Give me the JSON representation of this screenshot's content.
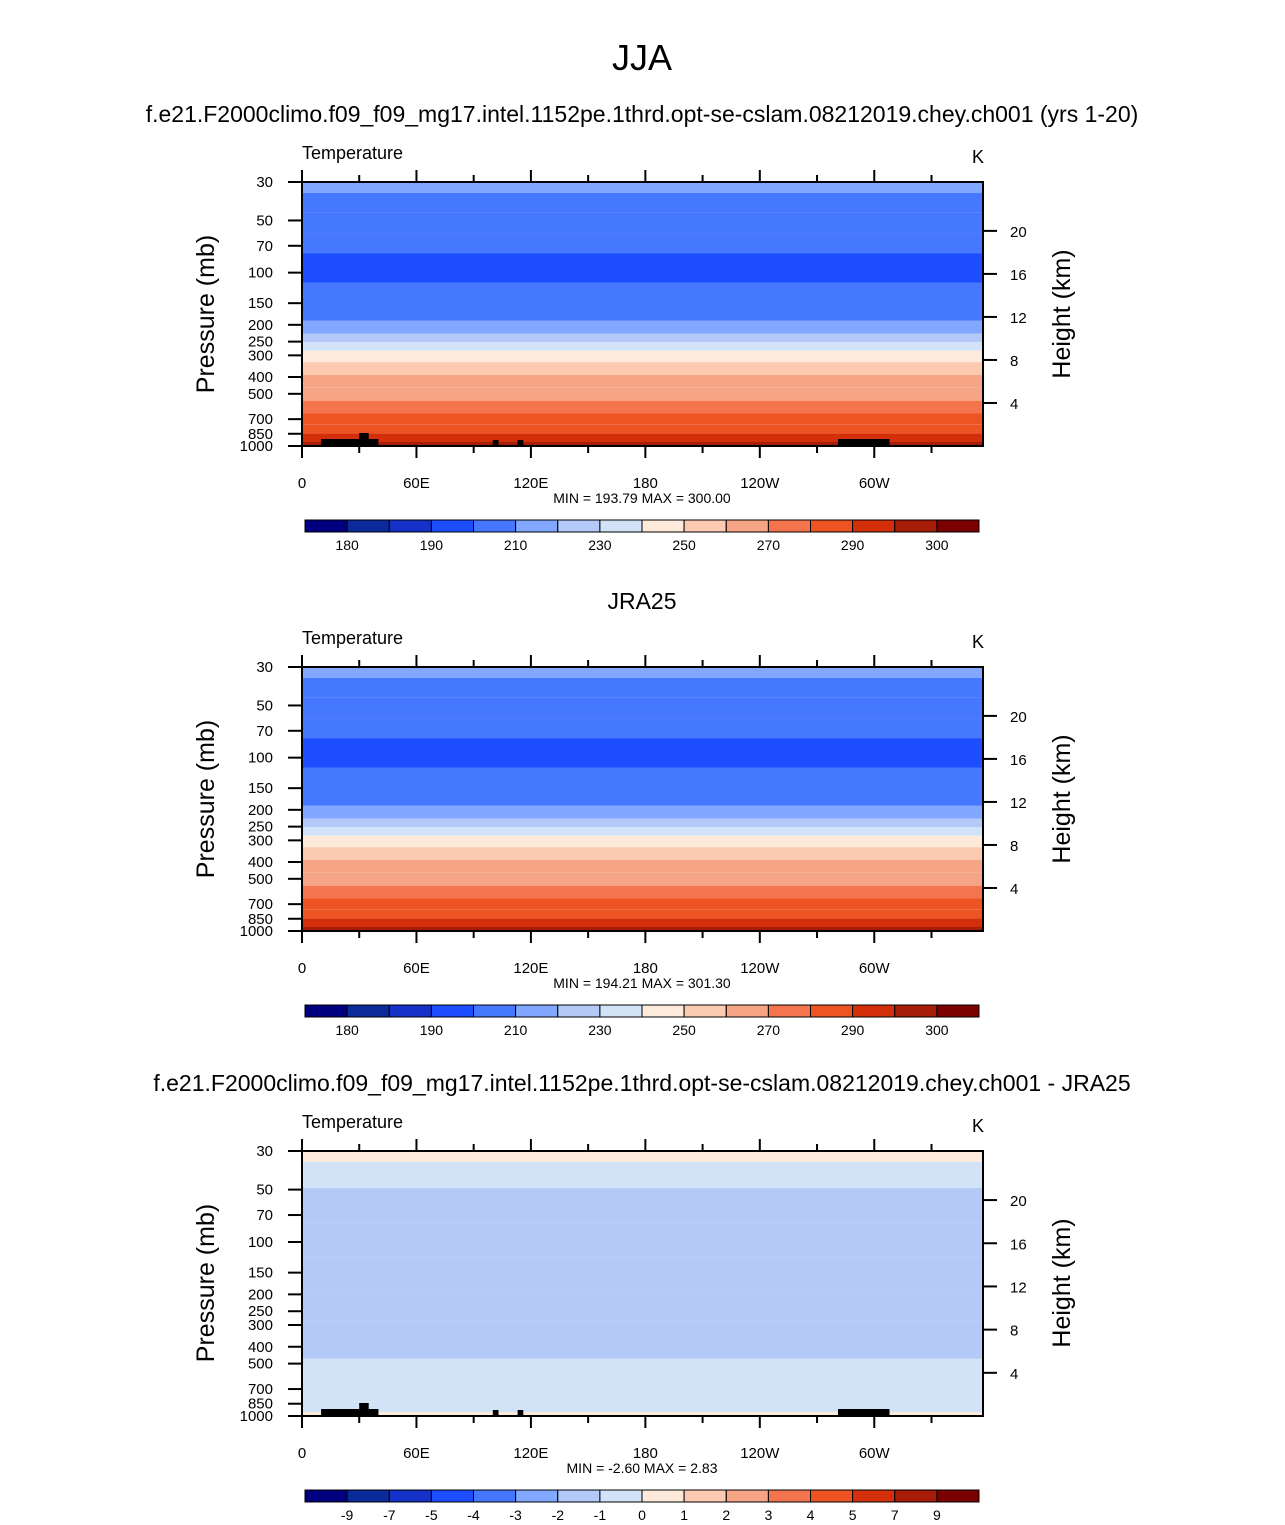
{
  "figure": {
    "main_title": "JJA"
  },
  "colors": {
    "abs_palette": [
      "#00007f",
      "#0b2a9c",
      "#1431c8",
      "#1c4eff",
      "#4677ff",
      "#81a7ff",
      "#b4c9f7",
      "#d2e3f8",
      "#fdeadb",
      "#fbcab1",
      "#f5a585",
      "#f4754d",
      "#ee5423",
      "#d42f0b",
      "#a61e08",
      "#7b0000"
    ],
    "diff_palette": [
      "#00007f",
      "#0b2a9c",
      "#1431c8",
      "#1c4eff",
      "#4677ff",
      "#81a7ff",
      "#b4c9f7",
      "#d2e3f8",
      "#fdeadb",
      "#fbcab1",
      "#f5a585",
      "#f4754d",
      "#ee5423",
      "#d42f0b",
      "#a61e08",
      "#7b0000"
    ],
    "topography": "#000000"
  },
  "chart_data": [
    {
      "type": "heatmap",
      "panel_title": "f.e21.F2000climo.f09_f09_mg17.intel.1152pe.1thrd.opt-se-cslam.08212019.chey.ch001 (yrs 1-20)",
      "left_label": "Temperature",
      "right_label": "K",
      "ylabel": "Pressure (mb)",
      "y2label": "Height (km)",
      "x_ticks": [
        "0",
        "60E",
        "120E",
        "180",
        "120W",
        "60W"
      ],
      "x_tick_values": [
        0,
        60,
        120,
        180,
        240,
        300
      ],
      "xlim": [
        0,
        357
      ],
      "ylim_mb": [
        1000,
        30
      ],
      "y_ticks": [
        "30",
        "50",
        "70",
        "100",
        "150",
        "200",
        "250",
        "300",
        "400",
        "500",
        "700",
        "850",
        "1000"
      ],
      "y_tick_values": [
        30,
        50,
        70,
        100,
        150,
        200,
        250,
        300,
        400,
        500,
        700,
        850,
        1000
      ],
      "y2_ticks": [
        "20",
        "16",
        "12",
        "8",
        "4"
      ],
      "y2_tick_values": [
        20,
        16,
        12,
        8,
        4
      ],
      "stats": "MIN = 193.79  MAX = 300.00",
      "min": 193.79,
      "max": 300.0,
      "palette": "abs",
      "colorbar_labels": [
        "180",
        "190",
        "210",
        "230",
        "250",
        "270",
        "290",
        "300"
      ],
      "colorbar_levels": [
        180,
        185,
        190,
        200,
        210,
        220,
        230,
        240,
        250,
        260,
        270,
        280,
        290,
        295,
        300
      ],
      "bands": [
        {
          "level": 30,
          "value": 214
        },
        {
          "level": 40,
          "value": 208
        },
        {
          "level": 50,
          "value": 205
        },
        {
          "level": 70,
          "value": 201
        },
        {
          "level": 85,
          "value": 195
        },
        {
          "level": 100,
          "value": 194
        },
        {
          "level": 130,
          "value": 200
        },
        {
          "level": 170,
          "value": 205
        },
        {
          "level": 210,
          "value": 215
        },
        {
          "level": 240,
          "value": 225
        },
        {
          "level": 265,
          "value": 235
        },
        {
          "level": 300,
          "value": 245
        },
        {
          "level": 360,
          "value": 252
        },
        {
          "level": 420,
          "value": 262
        },
        {
          "level": 500,
          "value": 267
        },
        {
          "level": 600,
          "value": 275
        },
        {
          "level": 700,
          "value": 281
        },
        {
          "level": 800,
          "value": 287
        },
        {
          "level": 900,
          "value": 292
        },
        {
          "level": 1000,
          "value": 296
        }
      ],
      "topography": true
    },
    {
      "type": "heatmap",
      "panel_title": "JRA25",
      "left_label": "Temperature",
      "right_label": "K",
      "ylabel": "Pressure (mb)",
      "y2label": "Height (km)",
      "x_ticks": [
        "0",
        "60E",
        "120E",
        "180",
        "120W",
        "60W"
      ],
      "x_tick_values": [
        0,
        60,
        120,
        180,
        240,
        300
      ],
      "xlim": [
        0,
        357
      ],
      "ylim_mb": [
        1000,
        30
      ],
      "y_ticks": [
        "30",
        "50",
        "70",
        "100",
        "150",
        "200",
        "250",
        "300",
        "400",
        "500",
        "700",
        "850",
        "1000"
      ],
      "y_tick_values": [
        30,
        50,
        70,
        100,
        150,
        200,
        250,
        300,
        400,
        500,
        700,
        850,
        1000
      ],
      "y2_ticks": [
        "20",
        "16",
        "12",
        "8",
        "4"
      ],
      "y2_tick_values": [
        20,
        16,
        12,
        8,
        4
      ],
      "stats": "MIN = 194.21  MAX = 301.30",
      "min": 194.21,
      "max": 301.3,
      "palette": "abs",
      "colorbar_labels": [
        "180",
        "190",
        "210",
        "230",
        "250",
        "270",
        "290",
        "300"
      ],
      "colorbar_levels": [
        180,
        185,
        190,
        200,
        210,
        220,
        230,
        240,
        250,
        260,
        270,
        280,
        290,
        295,
        300
      ],
      "bands": [
        {
          "level": 30,
          "value": 214
        },
        {
          "level": 40,
          "value": 208
        },
        {
          "level": 50,
          "value": 205
        },
        {
          "level": 70,
          "value": 201
        },
        {
          "level": 85,
          "value": 195
        },
        {
          "level": 100,
          "value": 194
        },
        {
          "level": 130,
          "value": 200
        },
        {
          "level": 170,
          "value": 205
        },
        {
          "level": 210,
          "value": 215
        },
        {
          "level": 240,
          "value": 225
        },
        {
          "level": 265,
          "value": 235
        },
        {
          "level": 300,
          "value": 245
        },
        {
          "level": 360,
          "value": 252
        },
        {
          "level": 420,
          "value": 262
        },
        {
          "level": 500,
          "value": 267
        },
        {
          "level": 600,
          "value": 275
        },
        {
          "level": 700,
          "value": 281
        },
        {
          "level": 800,
          "value": 287
        },
        {
          "level": 900,
          "value": 293
        },
        {
          "level": 1000,
          "value": 298
        }
      ],
      "topography": false
    },
    {
      "type": "heatmap",
      "panel_title": "f.e21.F2000climo.f09_f09_mg17.intel.1152pe.1thrd.opt-se-cslam.08212019.chey.ch001 - JRA25",
      "left_label": "Temperature",
      "right_label": "K",
      "ylabel": "Pressure (mb)",
      "y2label": "Height (km)",
      "x_ticks": [
        "0",
        "60E",
        "120E",
        "180",
        "120W",
        "60W"
      ],
      "x_tick_values": [
        0,
        60,
        120,
        180,
        240,
        300
      ],
      "xlim": [
        0,
        357
      ],
      "ylim_mb": [
        1000,
        30
      ],
      "y_ticks": [
        "30",
        "50",
        "70",
        "100",
        "150",
        "200",
        "250",
        "300",
        "400",
        "500",
        "700",
        "850",
        "1000"
      ],
      "y_tick_values": [
        30,
        50,
        70,
        100,
        150,
        200,
        250,
        300,
        400,
        500,
        700,
        850,
        1000
      ],
      "y2_ticks": [
        "20",
        "16",
        "12",
        "8",
        "4"
      ],
      "y2_tick_values": [
        20,
        16,
        12,
        8,
        4
      ],
      "stats": "MIN =  -2.60  MAX =   2.83",
      "min": -2.6,
      "max": 2.83,
      "palette": "diff",
      "colorbar_labels": [
        "-9",
        "-7",
        "-5",
        "-4",
        "-3",
        "-2",
        "-1",
        "0",
        "1",
        "2",
        "3",
        "4",
        "5",
        "7",
        "9"
      ],
      "colorbar_levels": [
        -9,
        -7,
        -5,
        -4,
        -3,
        -2,
        -1,
        0,
        1,
        2,
        3,
        4,
        5,
        7,
        9
      ],
      "bands": [
        {
          "level": 30,
          "value": 0.4
        },
        {
          "level": 40,
          "value": -0.5
        },
        {
          "level": 60,
          "value": -1.3
        },
        {
          "level": 100,
          "value": -1.2
        },
        {
          "level": 150,
          "value": -1.4
        },
        {
          "level": 250,
          "value": -1.6
        },
        {
          "level": 330,
          "value": -1.5
        },
        {
          "level": 400,
          "value": -1.4
        },
        {
          "level": 550,
          "value": -0.6
        },
        {
          "level": 750,
          "value": -0.7
        },
        {
          "level": 900,
          "value": -0.4
        },
        {
          "level": 1000,
          "value": 0.3
        }
      ],
      "topography": true
    }
  ]
}
